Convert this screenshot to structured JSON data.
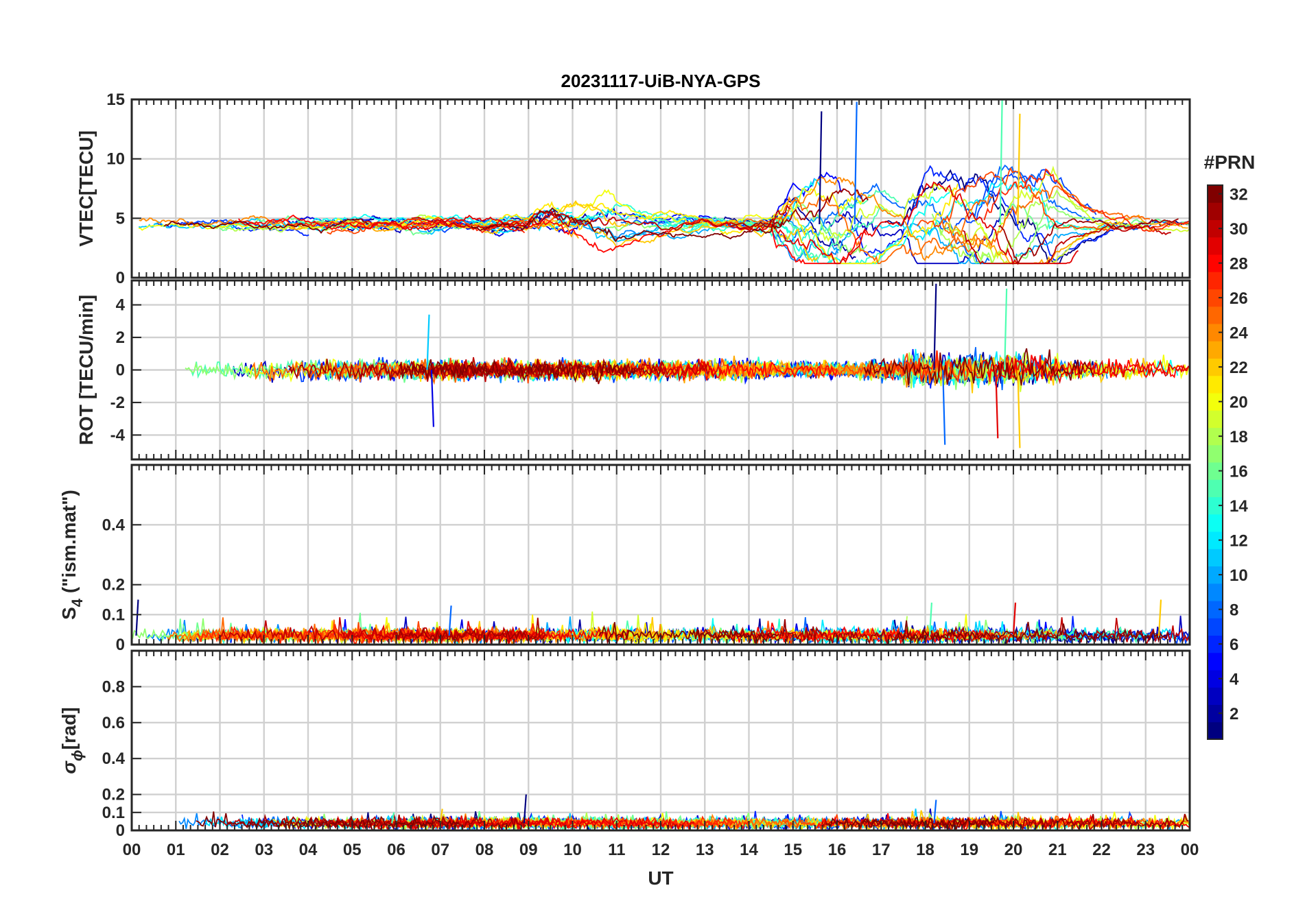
{
  "chart_data": {
    "type": "line",
    "title": "20231117-UiB-NYA-GPS",
    "xlabel": "UT",
    "x_ticks": [
      "00",
      "01",
      "02",
      "03",
      "04",
      "05",
      "06",
      "07",
      "08",
      "09",
      "10",
      "11",
      "12",
      "13",
      "14",
      "15",
      "16",
      "17",
      "18",
      "19",
      "20",
      "21",
      "22",
      "23",
      "00"
    ],
    "xlim": [
      0,
      24
    ],
    "grid": true,
    "colorbar": {
      "label": "#PRN",
      "range": [
        1,
        32
      ],
      "ticks": [
        "2",
        "4",
        "6",
        "8",
        "10",
        "12",
        "14",
        "16",
        "18",
        "20",
        "22",
        "24",
        "26",
        "28",
        "30",
        "32"
      ],
      "colormap": "jet",
      "placement": "right"
    },
    "panels": [
      {
        "id": "vtec",
        "ylabel": "VTEC[TECU]",
        "ylim": [
          0,
          15
        ],
        "y_ticks": [
          "0",
          "5",
          "10",
          "15"
        ],
        "features": {
          "baseline": 4.5,
          "spread": 1.2,
          "disturbed_intervals": [
            [
              14.5,
              17.0,
              6
            ],
            [
              17.5,
              21.0,
              7
            ],
            [
              9.0,
              11.0,
              3
            ]
          ],
          "peak_values": [
            [
              15.6,
              14.0
            ],
            [
              16.4,
              14.8
            ],
            [
              19.7,
              15.3
            ],
            [
              20.1,
              13.8
            ]
          ]
        }
      },
      {
        "id": "rot",
        "ylabel": "ROT [TECU/min]",
        "ylim": [
          -5.5,
          5.5
        ],
        "y_ticks": [
          "-4",
          "-2",
          "0",
          "2",
          "4"
        ],
        "features": {
          "noise_amplitude": 0.4,
          "disturbed_intervals": [
            [
              6.5,
              7.5,
              3.5
            ],
            [
              14.5,
              16.5,
              2.5
            ],
            [
              17.5,
              21.0,
              5.5
            ]
          ],
          "extreme_values": [
            [
              18.2,
              5.3
            ],
            [
              18.4,
              -4.6
            ],
            [
              19.8,
              5.0
            ],
            [
              20.1,
              -4.8
            ],
            [
              19.6,
              -4.2
            ],
            [
              6.8,
              -3.5
            ],
            [
              6.7,
              3.4
            ]
          ]
        }
      },
      {
        "id": "s4",
        "ylabel": "S",
        "ylabel_sub": "4",
        "ylabel_suffix": " (\"ism.mat\")",
        "ylim": [
          0,
          0.6
        ],
        "y_ticks": [
          "0",
          "0.1",
          "0.2",
          "0.4"
        ],
        "features": {
          "baseline": 0.03,
          "max_values": [
            [
              0.1,
              0.15
            ],
            [
              7.2,
              0.13
            ],
            [
              18.1,
              0.14
            ],
            [
              23.3,
              0.15
            ],
            [
              20.0,
              0.14
            ]
          ]
        }
      },
      {
        "id": "sigma",
        "ylabel": "σ",
        "ylabel_sub": "ϕ",
        "ylabel_suffix": "[rad]",
        "ylim": [
          0,
          1.0
        ],
        "y_ticks": [
          "0",
          "0.1",
          "0.2",
          "0.4",
          "0.6",
          "0.8"
        ],
        "features": {
          "baseline": 0.04,
          "max_values": [
            [
              8.9,
              0.2
            ],
            [
              18.2,
              0.17
            ],
            [
              5.9,
              0.1
            ],
            [
              7.0,
              0.12
            ]
          ]
        }
      }
    ],
    "series_count": 32
  }
}
